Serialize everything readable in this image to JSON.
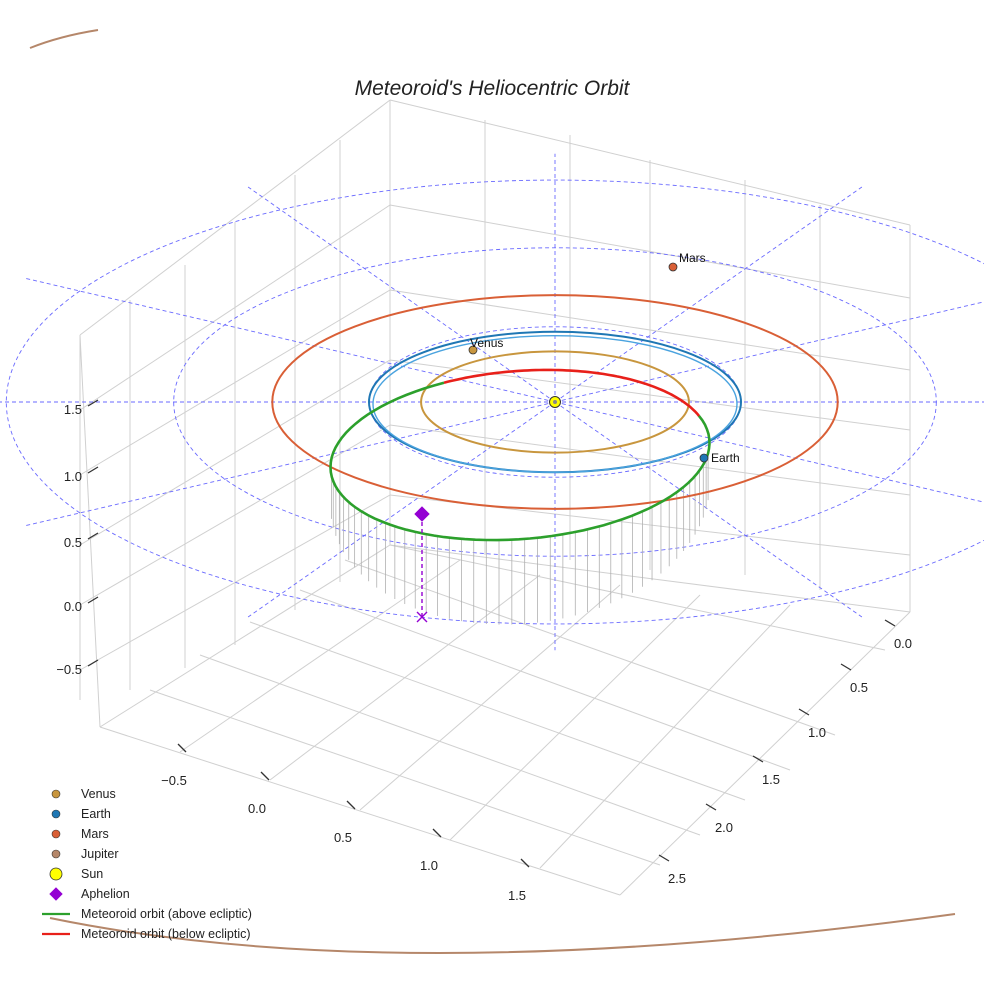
{
  "chart_data": {
    "type": "line",
    "title": "Meteoroid's Heliocentric Orbit",
    "x_ticks": [
      "−0.5",
      "0.0",
      "0.5",
      "1.0",
      "1.5"
    ],
    "y_ticks": [
      "0.0",
      "0.5",
      "1.0",
      "1.5",
      "2.0",
      "2.5"
    ],
    "z_ticks": [
      "−0.5",
      "0.0",
      "0.5",
      "1.0",
      "1.5"
    ],
    "planets": [
      {
        "name": "Venus",
        "orbit_radius_au": 0.72,
        "color": "#c8963e",
        "label": "Venus"
      },
      {
        "name": "Earth",
        "orbit_radius_au": 1.0,
        "color": "#1f77b4",
        "label": "Earth"
      },
      {
        "name": "Mars",
        "orbit_radius_au": 1.52,
        "color": "#d95f36",
        "label": "Mars"
      },
      {
        "name": "Jupiter",
        "orbit_radius_au": 5.2,
        "color": "#b5876a",
        "label": ""
      }
    ],
    "sun": {
      "name": "Sun",
      "color": "#ffff00"
    },
    "aphelion": {
      "name": "Aphelion",
      "color": "#9400d3"
    },
    "meteoroid_orbit": {
      "above_color": "#2ca02c",
      "below_color": "#e8201a"
    },
    "grid_color": "#6a6aff",
    "legend": [
      {
        "label": "Venus",
        "marker": "dot",
        "color": "#c8963e"
      },
      {
        "label": "Earth",
        "marker": "dot",
        "color": "#1f77b4"
      },
      {
        "label": "Mars",
        "marker": "dot",
        "color": "#d95f36"
      },
      {
        "label": "Jupiter",
        "marker": "dot",
        "color": "#b5876a"
      },
      {
        "label": "Sun",
        "marker": "big-dot",
        "color": "#ffff00"
      },
      {
        "label": "Aphelion",
        "marker": "diamond",
        "color": "#9400d3"
      },
      {
        "label": "Meteoroid orbit (above ecliptic)",
        "marker": "line",
        "color": "#2ca02c"
      },
      {
        "label": "Meteoroid orbit (below ecliptic)",
        "marker": "line",
        "color": "#e8201a"
      }
    ]
  }
}
